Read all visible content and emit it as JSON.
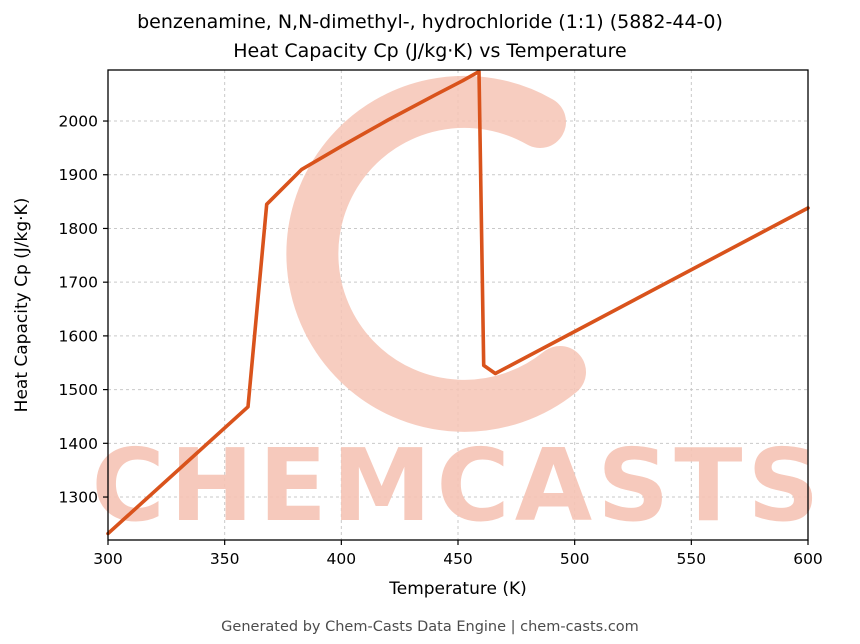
{
  "page": {
    "title_line1": "benzenamine, N,N-dimethyl-, hydrochloride (1:1) (5882-44-0)",
    "title_line2": "Heat Capacity Cp (J/kg·K) vs Temperature",
    "footer": "Generated by Chem-Casts Data Engine | chem-casts.com"
  },
  "watermark": {
    "text": "CHEMCASTS",
    "color": "#f6c4b5"
  },
  "chart_data": {
    "type": "line",
    "title": "benzenamine, N,N-dimethyl-, hydrochloride (1:1) (5882-44-0) Heat Capacity Cp (J/kg·K) vs Temperature",
    "xlabel": "Temperature (K)",
    "ylabel": "Heat Capacity Cp (J/kg·K)",
    "xlim": [
      300,
      600
    ],
    "ylim": [
      1220,
      2095
    ],
    "xticks": [
      300,
      350,
      400,
      450,
      500,
      550,
      600
    ],
    "yticks": [
      1300,
      1400,
      1500,
      1600,
      1700,
      1800,
      1900,
      2000
    ],
    "grid": true,
    "legend_position": "none",
    "line_color": "#d9531c",
    "series": [
      {
        "name": "Heat Capacity Cp",
        "x": [
          300,
          360,
          368,
          383,
          400,
          420,
          440,
          452,
          459,
          461,
          466,
          600
        ],
        "y": [
          1232,
          1468,
          1845,
          1910,
          1953,
          2002,
          2048,
          2075,
          2092,
          1545,
          1530,
          1838
        ]
      }
    ]
  }
}
